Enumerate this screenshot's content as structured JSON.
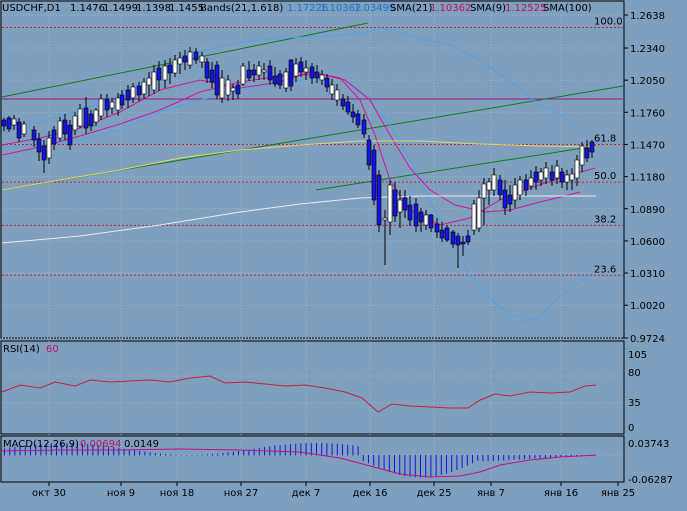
{
  "header": {
    "symbol": "USDCHF,D1",
    "ohlc": [
      "1.1476",
      "1.1499",
      "1.1398",
      "1.1455"
    ],
    "bands_label": "Bands(21,1.618)",
    "bands_values": [
      "1.17226",
      "1.10362",
      "1.03499"
    ],
    "sma21_label": "SMA(21)",
    "sma21_value": "1.10362",
    "sma9_label": "SMA(9)",
    "sma9_value": "1.12525",
    "sma100_label": "SMA(100)"
  },
  "colors": {
    "background": "#7f9fbf",
    "grid": "#9fb4c8",
    "bull": "#ffffff",
    "bear": "#1515dd",
    "bands": "#4fa3e8",
    "sma21": "#d0159a",
    "sma9": "#d0159a",
    "sma100_yellow": "#e8d66a",
    "sma_white": "#e8ecf0",
    "channel": "#127a1a",
    "fibo": "#c0203a",
    "text": "#000000"
  },
  "price_axis": [
    "1.2638",
    "1.2340",
    "1.2050",
    "1.1760",
    "1.1470",
    "1.1180",
    "1.0890",
    "1.0600",
    "1.0310",
    "1.0020",
    "0.9724"
  ],
  "fibo_labels": [
    {
      "text": "100.0",
      "price": 1.2525
    },
    {
      "text": "61.8",
      "price": 1.147
    },
    {
      "text": "50.0",
      "price": 1.113
    },
    {
      "text": "38.2",
      "price": 1.074
    },
    {
      "text": "23.6",
      "price": 1.029
    }
  ],
  "time_axis": [
    "окт 30",
    "ноя 9",
    "ноя 18",
    "ноя 27",
    "дек 7",
    "дек 16",
    "дек 25",
    "янв 7",
    "янв 16",
    "янв 25"
  ],
  "rsi": {
    "label": "RSI(14)",
    "value": "60",
    "axis": [
      "105",
      "80",
      "35",
      "0"
    ]
  },
  "macd": {
    "label": "MACD(12,26,9)",
    "value1": "0.00694",
    "value2": "0.0149",
    "axis": [
      "0.03743",
      "-0.06287"
    ]
  }
}
